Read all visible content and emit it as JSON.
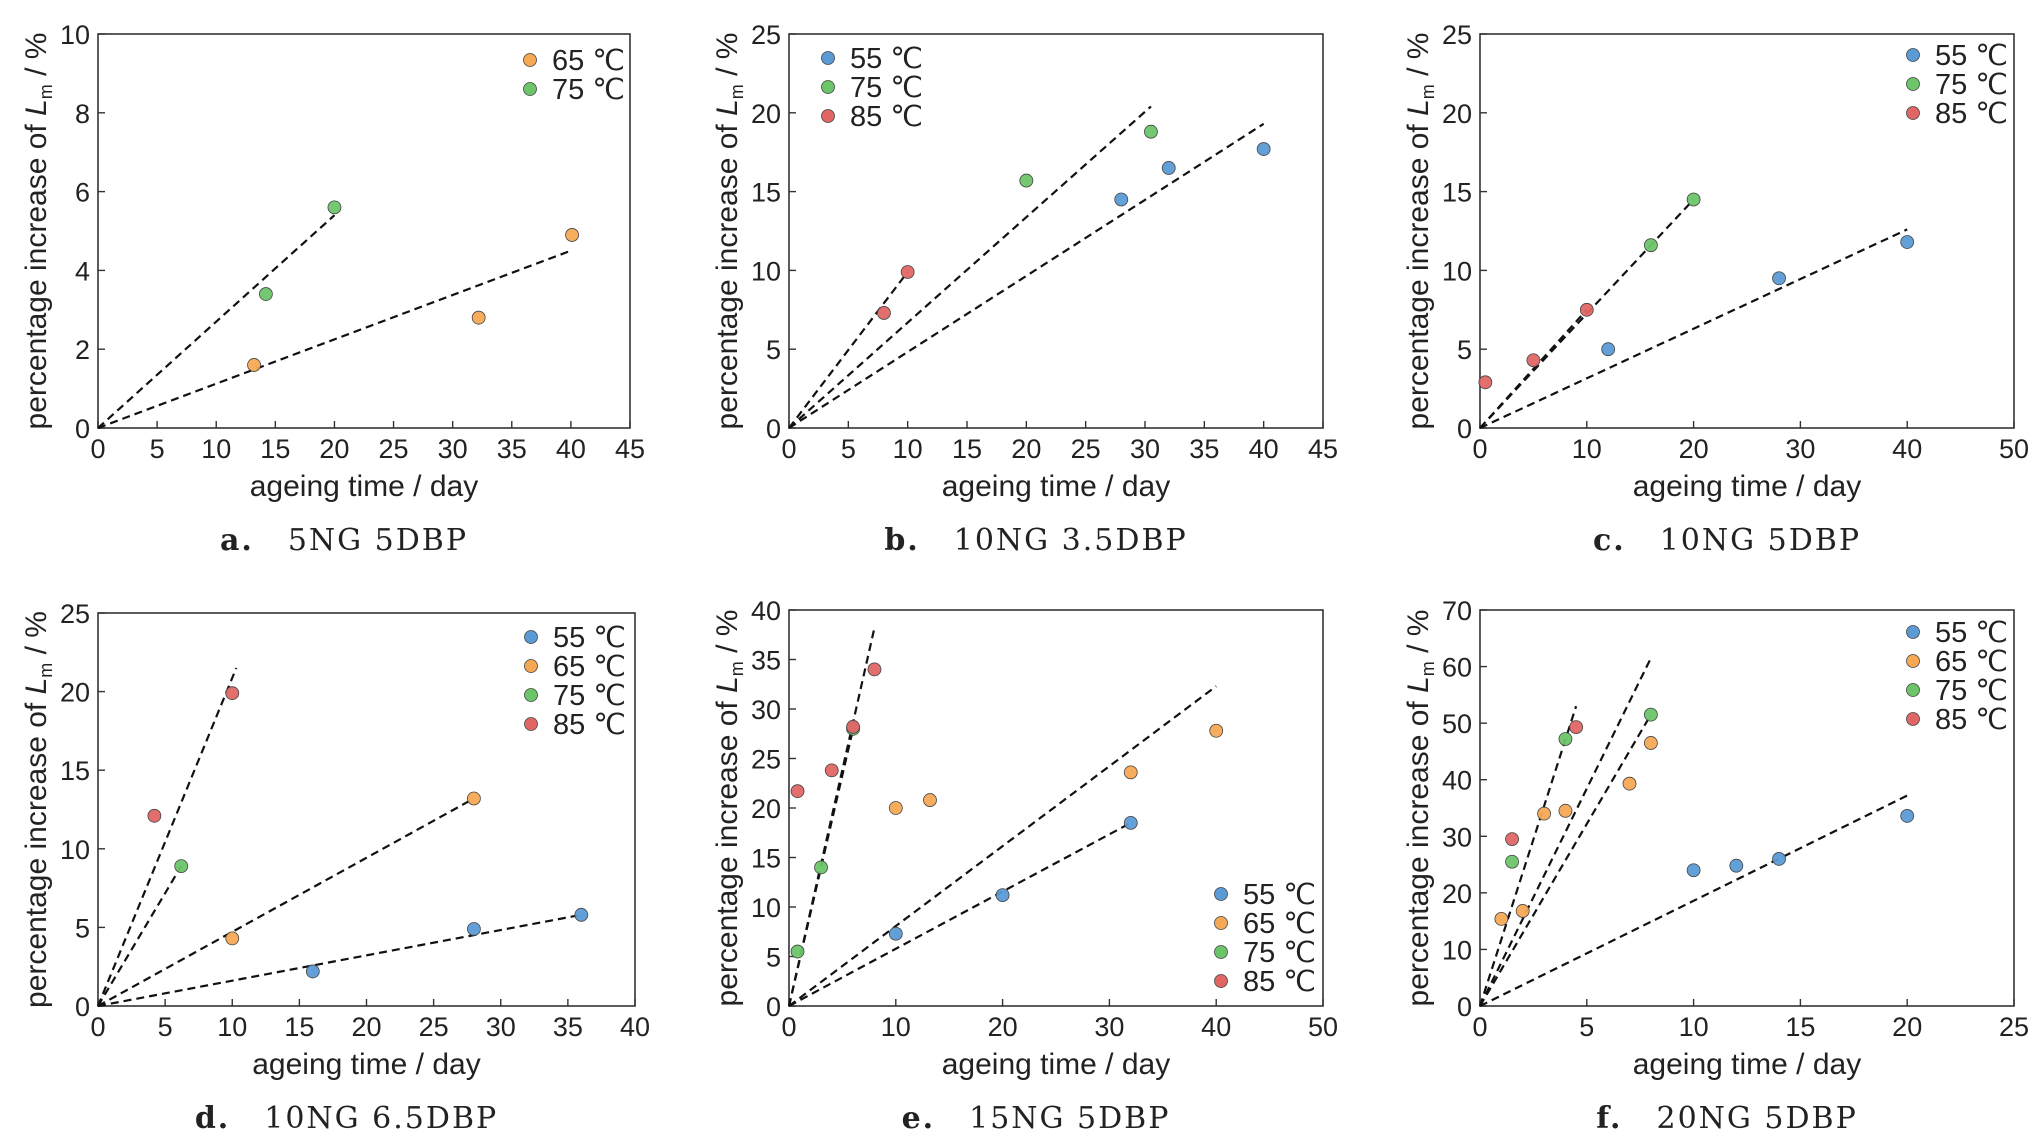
{
  "figure": {
    "ylabel_prefix": "percentage increase of ",
    "ylabel_var": "L",
    "ylabel_sub": "m",
    "ylabel_suffix": " / %",
    "xlabel": "ageing time / day"
  },
  "series_colors": {
    "55 ℃": "#5b9bd5",
    "65 ℃": "#f5a955",
    "75 ℃": "#6dc56a",
    "85 ℃": "#e06666"
  },
  "chart_data": [
    {
      "type": "scatter",
      "panel": "a.",
      "caption": "5NG 5DBP",
      "xlabel": "ageing time / day",
      "ylabel": "percentage increase of Lm / %",
      "xlim": [
        0,
        45
      ],
      "ylim": [
        0,
        10
      ],
      "xticks": [
        0,
        5,
        10,
        15,
        20,
        25,
        30,
        35,
        40,
        45
      ],
      "yticks": [
        0,
        2,
        4,
        6,
        8,
        10
      ],
      "legend_position": "top-right",
      "series": [
        {
          "name": "65 ℃",
          "x": [
            13.2,
            32.2,
            40.1
          ],
          "y": [
            1.6,
            2.8,
            4.9
          ],
          "fit_end": [
            40,
            4.5
          ]
        },
        {
          "name": "75 ℃",
          "x": [
            14.2,
            20.0
          ],
          "y": [
            3.4,
            5.6
          ],
          "fit_end": [
            20,
            5.4
          ]
        }
      ]
    },
    {
      "type": "scatter",
      "panel": "b.",
      "caption": "10NG 3.5DBP",
      "xlabel": "ageing time / day",
      "ylabel": "percentage increase of Lm / %",
      "xlim": [
        0,
        45
      ],
      "ylim": [
        0,
        25
      ],
      "xticks": [
        0,
        5,
        10,
        15,
        20,
        25,
        30,
        35,
        40,
        45
      ],
      "yticks": [
        0,
        5,
        10,
        15,
        20,
        25
      ],
      "legend_position": "top-left",
      "series": [
        {
          "name": "55 ℃",
          "x": [
            28.0,
            32.0,
            40.0
          ],
          "y": [
            14.5,
            16.5,
            17.7
          ],
          "fit_end": [
            40,
            19.3
          ]
        },
        {
          "name": "75 ℃",
          "x": [
            20.0,
            30.5
          ],
          "y": [
            15.7,
            18.8
          ],
          "fit_end": [
            30.5,
            20.4
          ]
        },
        {
          "name": "85 ℃",
          "x": [
            8.0,
            10.0
          ],
          "y": [
            7.3,
            9.9
          ],
          "fit_end": [
            10,
            9.9
          ]
        }
      ]
    },
    {
      "type": "scatter",
      "panel": "c.",
      "caption": "10NG 5DBP",
      "xlabel": "ageing time / day",
      "ylabel": "percentage increase of Lm / %",
      "xlim": [
        0,
        50
      ],
      "ylim": [
        0,
        25
      ],
      "xticks": [
        0,
        10,
        20,
        30,
        40,
        50
      ],
      "yticks": [
        0,
        5,
        10,
        15,
        20,
        25
      ],
      "legend_position": "top-right",
      "series": [
        {
          "name": "55 ℃",
          "x": [
            12.0,
            28.0,
            40.0
          ],
          "y": [
            5.0,
            9.5,
            11.8
          ],
          "fit_end": [
            40,
            12.6
          ]
        },
        {
          "name": "75 ℃",
          "x": [
            16.0,
            20.0
          ],
          "y": [
            11.6,
            14.5
          ],
          "fit_end": [
            20,
            14.5
          ]
        },
        {
          "name": "85 ℃",
          "x": [
            0.5,
            5.0,
            10.0
          ],
          "y": [
            2.9,
            4.3,
            7.5
          ],
          "fit_end": [
            10,
            7.5
          ]
        }
      ]
    },
    {
      "type": "scatter",
      "panel": "d.",
      "caption": "10NG 6.5DBP",
      "xlabel": "ageing time / day",
      "ylabel": "percentage increase of Lm / %",
      "xlim": [
        0,
        40
      ],
      "ylim": [
        0,
        25
      ],
      "xticks": [
        0,
        5,
        10,
        15,
        20,
        25,
        30,
        35,
        40
      ],
      "yticks": [
        0,
        5,
        10,
        15,
        20,
        25
      ],
      "legend_position": "top-right",
      "series": [
        {
          "name": "55 ℃",
          "x": [
            16.0,
            28.0,
            36.0
          ],
          "y": [
            2.2,
            4.9,
            5.8
          ],
          "fit_end": [
            36,
            5.8
          ]
        },
        {
          "name": "65 ℃",
          "x": [
            10.0,
            28.0
          ],
          "y": [
            4.3,
            13.2
          ],
          "fit_end": [
            28,
            13.2
          ]
        },
        {
          "name": "75 ℃",
          "x": [
            6.2
          ],
          "y": [
            8.9
          ],
          "fit_end": [
            6.2,
            8.9
          ]
        },
        {
          "name": "85 ℃",
          "x": [
            4.2,
            10.0
          ],
          "y": [
            12.1,
            19.9
          ],
          "fit_end": [
            10.3,
            21.5
          ]
        }
      ]
    },
    {
      "type": "scatter",
      "panel": "e.",
      "caption": "15NG 5DBP",
      "xlabel": "ageing time / day",
      "ylabel": "percentage increase of Lm / %",
      "xlim": [
        0,
        50
      ],
      "ylim": [
        0,
        40
      ],
      "xticks": [
        0,
        10,
        20,
        30,
        40,
        50
      ],
      "yticks": [
        0,
        5,
        10,
        15,
        20,
        25,
        30,
        35,
        40
      ],
      "legend_position": "bottom-right",
      "series": [
        {
          "name": "55 ℃",
          "x": [
            10.0,
            20.0,
            32.0
          ],
          "y": [
            7.3,
            11.2,
            18.5
          ],
          "fit_end": [
            32,
            18.5
          ]
        },
        {
          "name": "65 ℃",
          "x": [
            10.0,
            13.2,
            32.0,
            40.0
          ],
          "y": [
            20.0,
            20.8,
            23.6,
            27.8
          ],
          "fit_end": [
            40,
            32.3
          ]
        },
        {
          "name": "75 ℃",
          "x": [
            0.8,
            3.0,
            6.0
          ],
          "y": [
            5.5,
            14.0,
            28.0
          ],
          "fit_end": [
            6,
            28.0
          ]
        },
        {
          "name": "85 ℃",
          "x": [
            0.8,
            4.0,
            6.0,
            8.0
          ],
          "y": [
            21.7,
            23.8,
            28.2,
            34.0
          ],
          "fit_end": [
            8,
            38.2
          ]
        }
      ]
    },
    {
      "type": "scatter",
      "panel": "f.",
      "caption": "20NG 5DBP",
      "xlabel": "ageing time / day",
      "ylabel": "percentage increase of Lm / %",
      "xlim": [
        0,
        25
      ],
      "ylim": [
        0,
        70
      ],
      "xticks": [
        0,
        5,
        10,
        15,
        20,
        25
      ],
      "yticks": [
        0,
        10,
        20,
        30,
        40,
        50,
        60,
        70
      ],
      "legend_position": "top-right",
      "series": [
        {
          "name": "55 ℃",
          "x": [
            10.0,
            12.0,
            14.0,
            20.0
          ],
          "y": [
            24.0,
            24.8,
            26.0,
            33.6
          ],
          "fit_end": [
            20,
            37.2
          ]
        },
        {
          "name": "65 ℃",
          "x": [
            1.0,
            2.0,
            3.0,
            4.0,
            7.0,
            8.0
          ],
          "y": [
            15.4,
            16.8,
            34.0,
            34.5,
            39.3,
            46.5
          ],
          "fit_end": [
            8,
            61.5
          ]
        },
        {
          "name": "75 ℃",
          "x": [
            1.5,
            4.0,
            8.0
          ],
          "y": [
            25.5,
            47.2,
            51.5
          ],
          "fit_end": [
            8,
            51.5
          ]
        },
        {
          "name": "85 ℃",
          "x": [
            1.5,
            4.5
          ],
          "y": [
            29.5,
            49.3
          ],
          "fit_end": [
            4.5,
            53.0
          ]
        }
      ]
    }
  ]
}
